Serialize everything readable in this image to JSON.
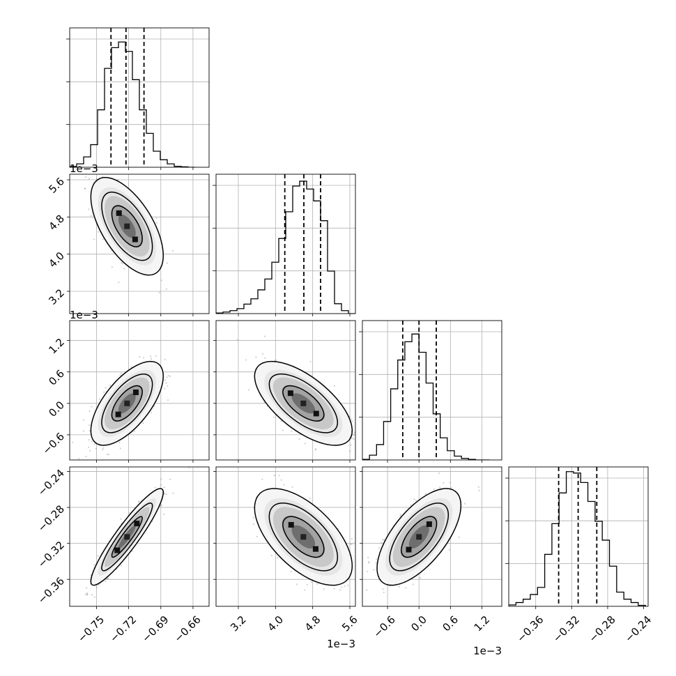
{
  "chart_data": {
    "type": "corner",
    "parameters": [
      {
        "axis_range": [
          -0.775,
          -0.645
        ],
        "hist_ylim": [
          0,
          740
        ],
        "ticks": [
          -0.75,
          -0.72,
          -0.69,
          -0.66
        ],
        "tick_labels": [
          "−0.75",
          "−0.72",
          "−0.69",
          "−0.66"
        ],
        "offset_label": "",
        "quantiles": [
          -0.7365,
          -0.7225,
          -0.7057
        ],
        "hist": {
          "bin_edges": [
            -0.775,
            -0.7685,
            -0.762,
            -0.7555,
            -0.749,
            -0.7425,
            -0.736,
            -0.7295,
            -0.723,
            -0.7165,
            -0.71,
            -0.7035,
            -0.697,
            -0.6905,
            -0.684,
            -0.6775,
            -0.671,
            -0.6645,
            -0.658
          ],
          "counts": [
            4,
            18,
            55,
            120,
            305,
            525,
            635,
            665,
            615,
            465,
            305,
            180,
            85,
            40,
            18,
            5,
            2,
            0
          ]
        }
      },
      {
        "axis_range": [
          2.72,
          5.72
        ],
        "hist_ylim": [
          0,
          705
        ],
        "ticks": [
          3.2,
          4.0,
          4.8,
          5.6
        ],
        "tick_labels": [
          "3.2",
          "4.0",
          "4.8",
          "5.6"
        ],
        "offset_label": "1e−3",
        "quantiles": [
          4.2,
          4.61,
          4.97
        ],
        "hist": {
          "bin_edges": [
            2.72,
            2.87,
            3.02,
            3.17,
            3.32,
            3.47,
            3.62,
            3.77,
            3.92,
            4.07,
            4.22,
            4.37,
            4.52,
            4.67,
            4.82,
            4.97,
            5.12,
            5.27,
            5.42,
            5.57,
            5.72
          ],
          "counts": [
            3,
            8,
            15,
            25,
            48,
            75,
            120,
            175,
            260,
            380,
            515,
            645,
            670,
            630,
            570,
            470,
            215,
            50,
            15,
            0
          ]
        }
      },
      {
        "axis_range": [
          -1.08,
          1.58
        ],
        "hist_ylim": [
          0,
          725
        ],
        "ticks": [
          -0.6,
          0.0,
          0.6,
          1.2
        ],
        "tick_labels": [
          "−0.6",
          "0.0",
          "0.6",
          "1.2"
        ],
        "offset_label": "1e−3",
        "quantiles": [
          -0.31,
          0.0,
          0.33
        ],
        "hist": {
          "bin_edges": [
            -1.08,
            -0.945,
            -0.81,
            -0.675,
            -0.54,
            -0.405,
            -0.27,
            -0.135,
            0.0,
            0.135,
            0.27,
            0.405,
            0.54,
            0.675,
            0.81,
            0.945,
            1.08,
            1.215,
            1.35
          ],
          "counts": [
            3,
            25,
            80,
            200,
            370,
            520,
            615,
            655,
            560,
            400,
            240,
            115,
            48,
            20,
            8,
            3,
            0,
            0
          ]
        }
      },
      {
        "axis_range": [
          -0.39,
          -0.235
        ],
        "hist_ylim": [
          0,
          295
        ],
        "ticks": [
          -0.36,
          -0.32,
          -0.28,
          -0.24
        ],
        "tick_labels": [
          "−0.36",
          "−0.32",
          "−0.28",
          "−0.24"
        ],
        "offset_label": "",
        "quantiles": [
          -0.3345,
          -0.3128,
          -0.2921
        ],
        "hist": {
          "bin_edges": [
            -0.39,
            -0.382,
            -0.374,
            -0.366,
            -0.358,
            -0.35,
            -0.342,
            -0.334,
            -0.326,
            -0.318,
            -0.31,
            -0.302,
            -0.294,
            -0.286,
            -0.278,
            -0.27,
            -0.262,
            -0.254,
            -0.246,
            -0.238
          ],
          "counts": [
            3,
            8,
            15,
            25,
            40,
            110,
            175,
            240,
            285,
            282,
            262,
            222,
            180,
            140,
            85,
            30,
            15,
            8,
            2
          ]
        }
      }
    ],
    "pairs": [
      {
        "x_index": 0,
        "y_index": 1,
        "mean": [
          -0.7215,
          4.6
        ],
        "std": [
          0.0135,
          0.42
        ],
        "corr": -0.6
      },
      {
        "x_index": 0,
        "y_index": 2,
        "mean": [
          -0.7215,
          0.0
        ],
        "std": [
          0.0135,
          0.32
        ],
        "corr": 0.65
      },
      {
        "x_index": 1,
        "y_index": 2,
        "mean": [
          4.6,
          0.0
        ],
        "std": [
          0.42,
          0.32
        ],
        "corr": -0.65
      },
      {
        "x_index": 0,
        "y_index": 3,
        "mean": [
          -0.7215,
          -0.3128
        ],
        "std": [
          0.0135,
          0.0215
        ],
        "corr": 0.92
      },
      {
        "x_index": 1,
        "y_index": 3,
        "mean": [
          4.6,
          -0.3128
        ],
        "std": [
          0.42,
          0.0215
        ],
        "corr": -0.6
      },
      {
        "x_index": 2,
        "y_index": 3,
        "mean": [
          0.0,
          -0.3128
        ],
        "std": [
          0.32,
          0.0215
        ],
        "corr": 0.65
      }
    ],
    "grid": true
  }
}
